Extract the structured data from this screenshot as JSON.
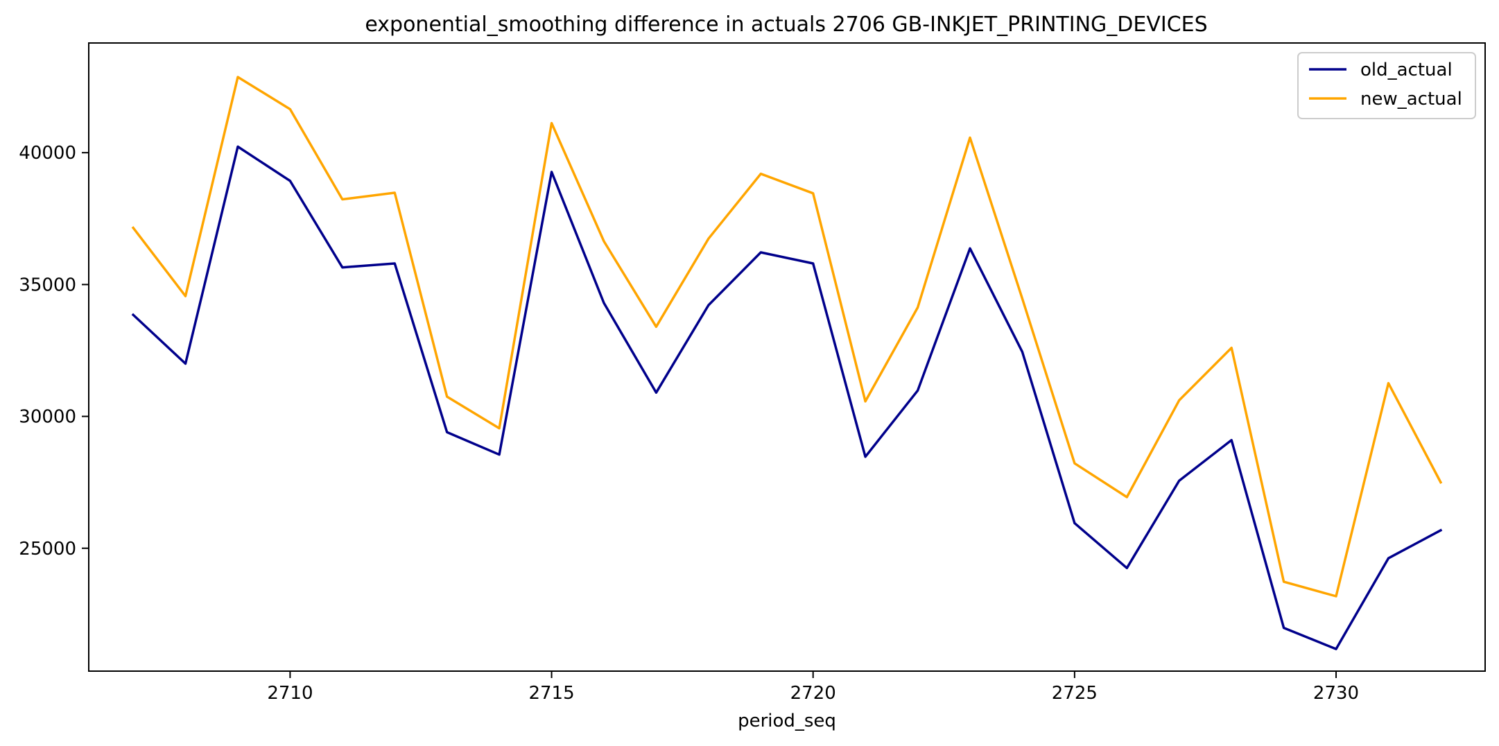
{
  "chart_data": {
    "type": "line",
    "title": "exponential_smoothing difference in actuals 2706 GB-INKJET_PRINTING_DEVICES",
    "xlabel": "period_seq",
    "ylabel": "",
    "x": [
      2707,
      2708,
      2709,
      2710,
      2711,
      2712,
      2713,
      2714,
      2715,
      2716,
      2717,
      2718,
      2719,
      2720,
      2721,
      2722,
      2723,
      2724,
      2725,
      2726,
      2727,
      2728,
      2729,
      2730,
      2731,
      2732
    ],
    "series": [
      {
        "name": "old_actual",
        "color": "#00008b",
        "values": [
          33850,
          32000,
          40230,
          38930,
          35650,
          35800,
          29400,
          28550,
          39270,
          34300,
          30900,
          34220,
          36220,
          35800,
          28470,
          30980,
          36370,
          32450,
          25950,
          24250,
          27560,
          29100,
          21980,
          21180,
          24620,
          25680
        ]
      },
      {
        "name": "new_actual",
        "color": "#ffa500",
        "values": [
          37150,
          34560,
          42870,
          41650,
          38230,
          38480,
          30750,
          29550,
          41120,
          36640,
          33400,
          36740,
          39200,
          38460,
          30570,
          34130,
          40570,
          34470,
          28220,
          26940,
          30610,
          32600,
          23730,
          23180,
          31260,
          27500
        ]
      }
    ],
    "xlim": [
      2706.15,
      2732.85
    ],
    "ylim": [
      20340,
      44160
    ],
    "xticks": [
      2710,
      2715,
      2720,
      2725,
      2730
    ],
    "yticks": [
      25000,
      30000,
      35000,
      40000
    ],
    "grid": false,
    "legend_position": "top-right"
  }
}
